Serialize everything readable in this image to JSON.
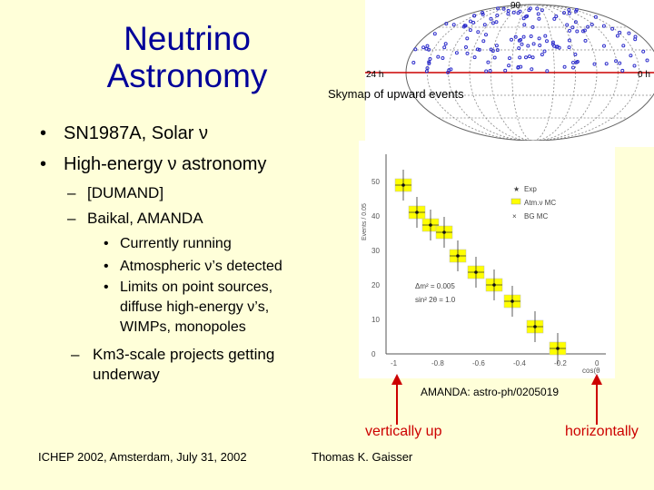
{
  "slide": {
    "title": "Neutrino Astronomy",
    "title_lines": [
      "Neutrino",
      "Astronomy"
    ],
    "bullets_l1": [
      "SN1987A, Solar ν",
      "High-energy ν astronomy"
    ],
    "bullet_glyph_l1": "•",
    "bullets_l2": [
      "[DUMAND]",
      "Baikal, AMANDA"
    ],
    "dash_glyph": "–",
    "bullets_l3": [
      "Currently running",
      "Atmospheric ν’s detected"
    ],
    "bullet_l3_long_lines": [
      "Limits on point sources,",
      "diffuse high-energy ν’s,",
      "WIMPs, monopoles"
    ],
    "bullet_l2_last_lines": [
      "Km3-scale projects getting",
      "underway"
    ],
    "skymap_caption": "Skymap of upward events",
    "skymap_labels": {
      "top": "90",
      "left": "24 h",
      "right": "0 h"
    },
    "plot": {
      "legend": [
        "Exp",
        "Atm.ν MC",
        "BG MC"
      ],
      "annot_1": "Δm² = 0.005",
      "annot_2": "sin² 2θ = 1.0",
      "x_ticks": [
        "-1",
        "-0.8",
        "-0.6",
        "-0.4",
        "-0.2",
        "0"
      ],
      "y_ticks": [
        "0",
        "10",
        "20",
        "30",
        "40",
        "50"
      ],
      "x_label": "cos(θ",
      "y_label": "Events / 0.05"
    },
    "citation": "AMANDA: astro-ph/0205019",
    "arrow_up_label": "vertically up",
    "arrow_horiz_label": "horizontally",
    "footer_left": "ICHEP 2002, Amsterdam, July 31, 2002",
    "footer_center": "Thomas K. Gaisser",
    "colors": {
      "title": "#000099",
      "background": "#ffffd9",
      "arrow": "#cc0000",
      "box": "#ffff00"
    }
  }
}
